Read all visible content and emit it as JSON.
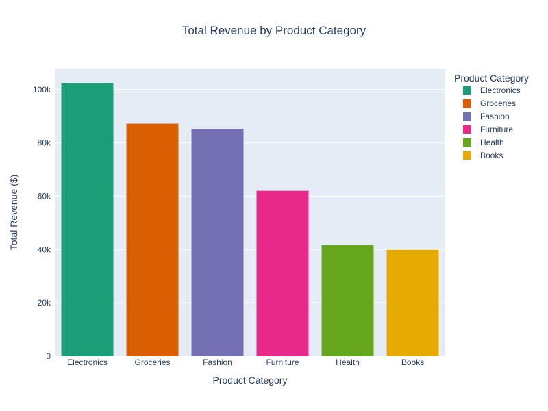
{
  "chart_data": {
    "type": "bar",
    "title": "Total Revenue by Product Category",
    "xlabel": "Product Category",
    "ylabel": "Total Revenue ($)",
    "categories": [
      "Electronics",
      "Groceries",
      "Fashion",
      "Furniture",
      "Health",
      "Books"
    ],
    "values": [
      102500,
      87200,
      85200,
      62000,
      41700,
      39900
    ],
    "colors": [
      "#1b9e77",
      "#d95f02",
      "#7570b3",
      "#e7298a",
      "#66a61e",
      "#e6ab02"
    ],
    "ylim": [
      0,
      107900
    ],
    "yticks": [
      0,
      20000,
      40000,
      60000,
      80000,
      100000
    ],
    "ytick_labels": [
      "0",
      "20k",
      "40k",
      "60k",
      "80k",
      "100k"
    ],
    "grid": true,
    "legend": {
      "title": "Product Category",
      "placement": "right",
      "entries": [
        "Electronics",
        "Groceries",
        "Fashion",
        "Furniture",
        "Health",
        "Books"
      ]
    },
    "background": "#e5ecf6"
  }
}
